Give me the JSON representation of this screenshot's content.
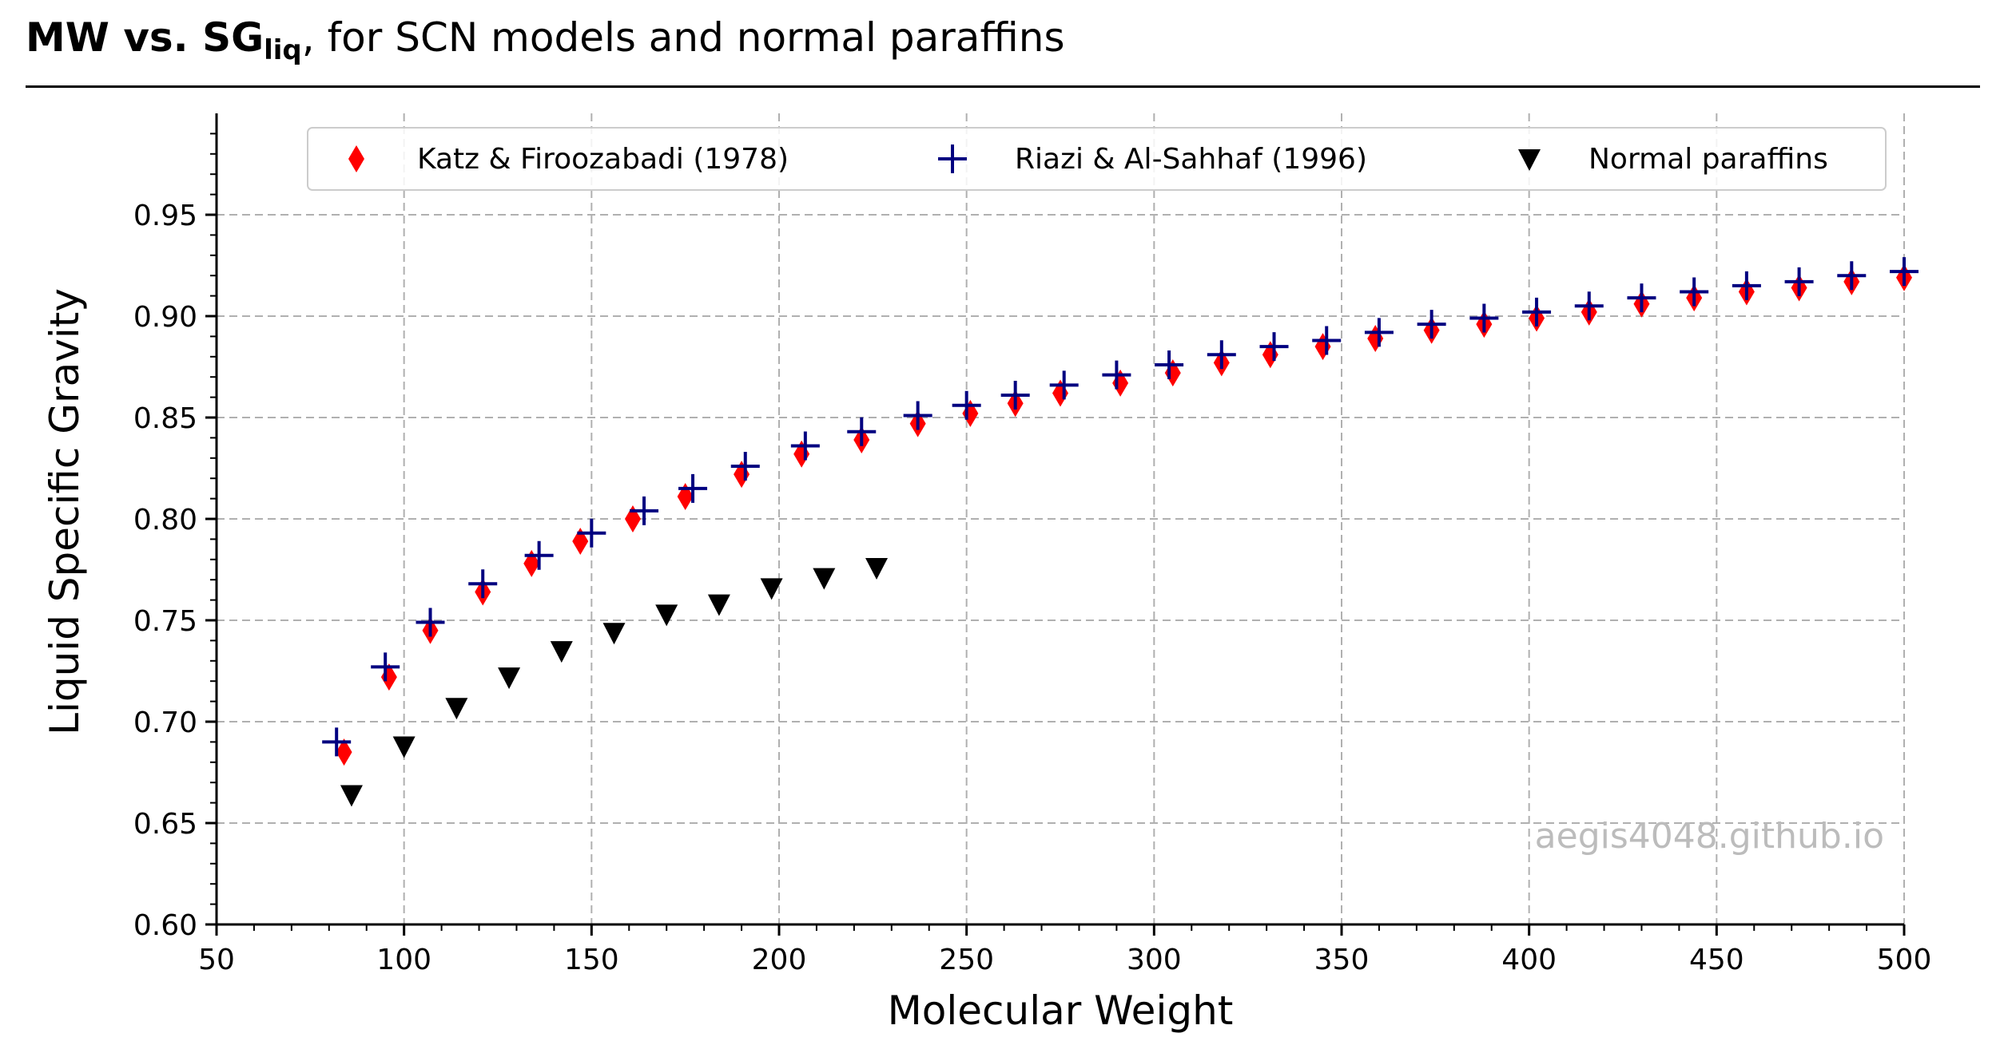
{
  "chart_data": {
    "type": "scatter",
    "title": {
      "bold_main": "MW vs. SG",
      "bold_subscript": "liq",
      "rest": ", for SCN models and normal paraffins"
    },
    "xlabel": "Molecular Weight",
    "ylabel": "Liquid Specific Gravity",
    "xlim": [
      50,
      500
    ],
    "ylim": [
      0.6,
      1.0
    ],
    "xticks": [
      50,
      100,
      150,
      200,
      250,
      300,
      350,
      400,
      450,
      500
    ],
    "xtick_labels": [
      "50",
      "100",
      "150",
      "200",
      "250",
      "300",
      "350",
      "400",
      "450",
      "500"
    ],
    "yticks": [
      0.6,
      0.65,
      0.7,
      0.75,
      0.8,
      0.85,
      0.9,
      0.95
    ],
    "ytick_labels": [
      "0.60",
      "0.65",
      "0.70",
      "0.75",
      "0.80",
      "0.85",
      "0.90",
      "0.95"
    ],
    "grid": true,
    "legend_position": "top",
    "watermark": "aegis4048.github.io",
    "series": [
      {
        "name": "Katz & Firoozabadi (1978)",
        "marker": "diamond",
        "color": "#ff0000",
        "x": [
          84,
          96,
          107,
          121,
          134,
          147,
          161,
          175,
          190,
          206,
          222,
          237,
          251,
          263,
          275,
          291,
          305,
          318,
          331,
          345,
          359,
          374,
          388,
          402,
          416,
          430,
          444,
          458,
          472,
          486,
          500
        ],
        "y": [
          0.685,
          0.722,
          0.745,
          0.764,
          0.778,
          0.789,
          0.8,
          0.811,
          0.822,
          0.832,
          0.839,
          0.847,
          0.852,
          0.857,
          0.862,
          0.867,
          0.872,
          0.877,
          0.881,
          0.885,
          0.889,
          0.893,
          0.896,
          0.899,
          0.902,
          0.906,
          0.909,
          0.912,
          0.914,
          0.917,
          0.919
        ]
      },
      {
        "name": "Riazi & Al-Sahhaf (1996)",
        "marker": "plus",
        "color": "#000080",
        "x": [
          82,
          95,
          107,
          121,
          136,
          150,
          164,
          177,
          191,
          207,
          222,
          237,
          250,
          263,
          276,
          290,
          304,
          318,
          332,
          346,
          360,
          374,
          388,
          402,
          416,
          430,
          444,
          458,
          472,
          486,
          500
        ],
        "y": [
          0.69,
          0.727,
          0.749,
          0.768,
          0.782,
          0.793,
          0.804,
          0.815,
          0.826,
          0.836,
          0.843,
          0.851,
          0.856,
          0.861,
          0.866,
          0.871,
          0.876,
          0.881,
          0.885,
          0.888,
          0.892,
          0.896,
          0.899,
          0.902,
          0.905,
          0.909,
          0.912,
          0.915,
          0.917,
          0.92,
          0.922
        ]
      },
      {
        "name": "Normal paraffins",
        "marker": "triangle-down",
        "color": "#000000",
        "x": [
          86,
          100,
          114,
          128,
          142,
          156,
          170,
          184,
          198,
          212,
          226
        ],
        "y": [
          0.664,
          0.688,
          0.707,
          0.722,
          0.735,
          0.744,
          0.753,
          0.758,
          0.766,
          0.771,
          0.776
        ]
      }
    ]
  }
}
